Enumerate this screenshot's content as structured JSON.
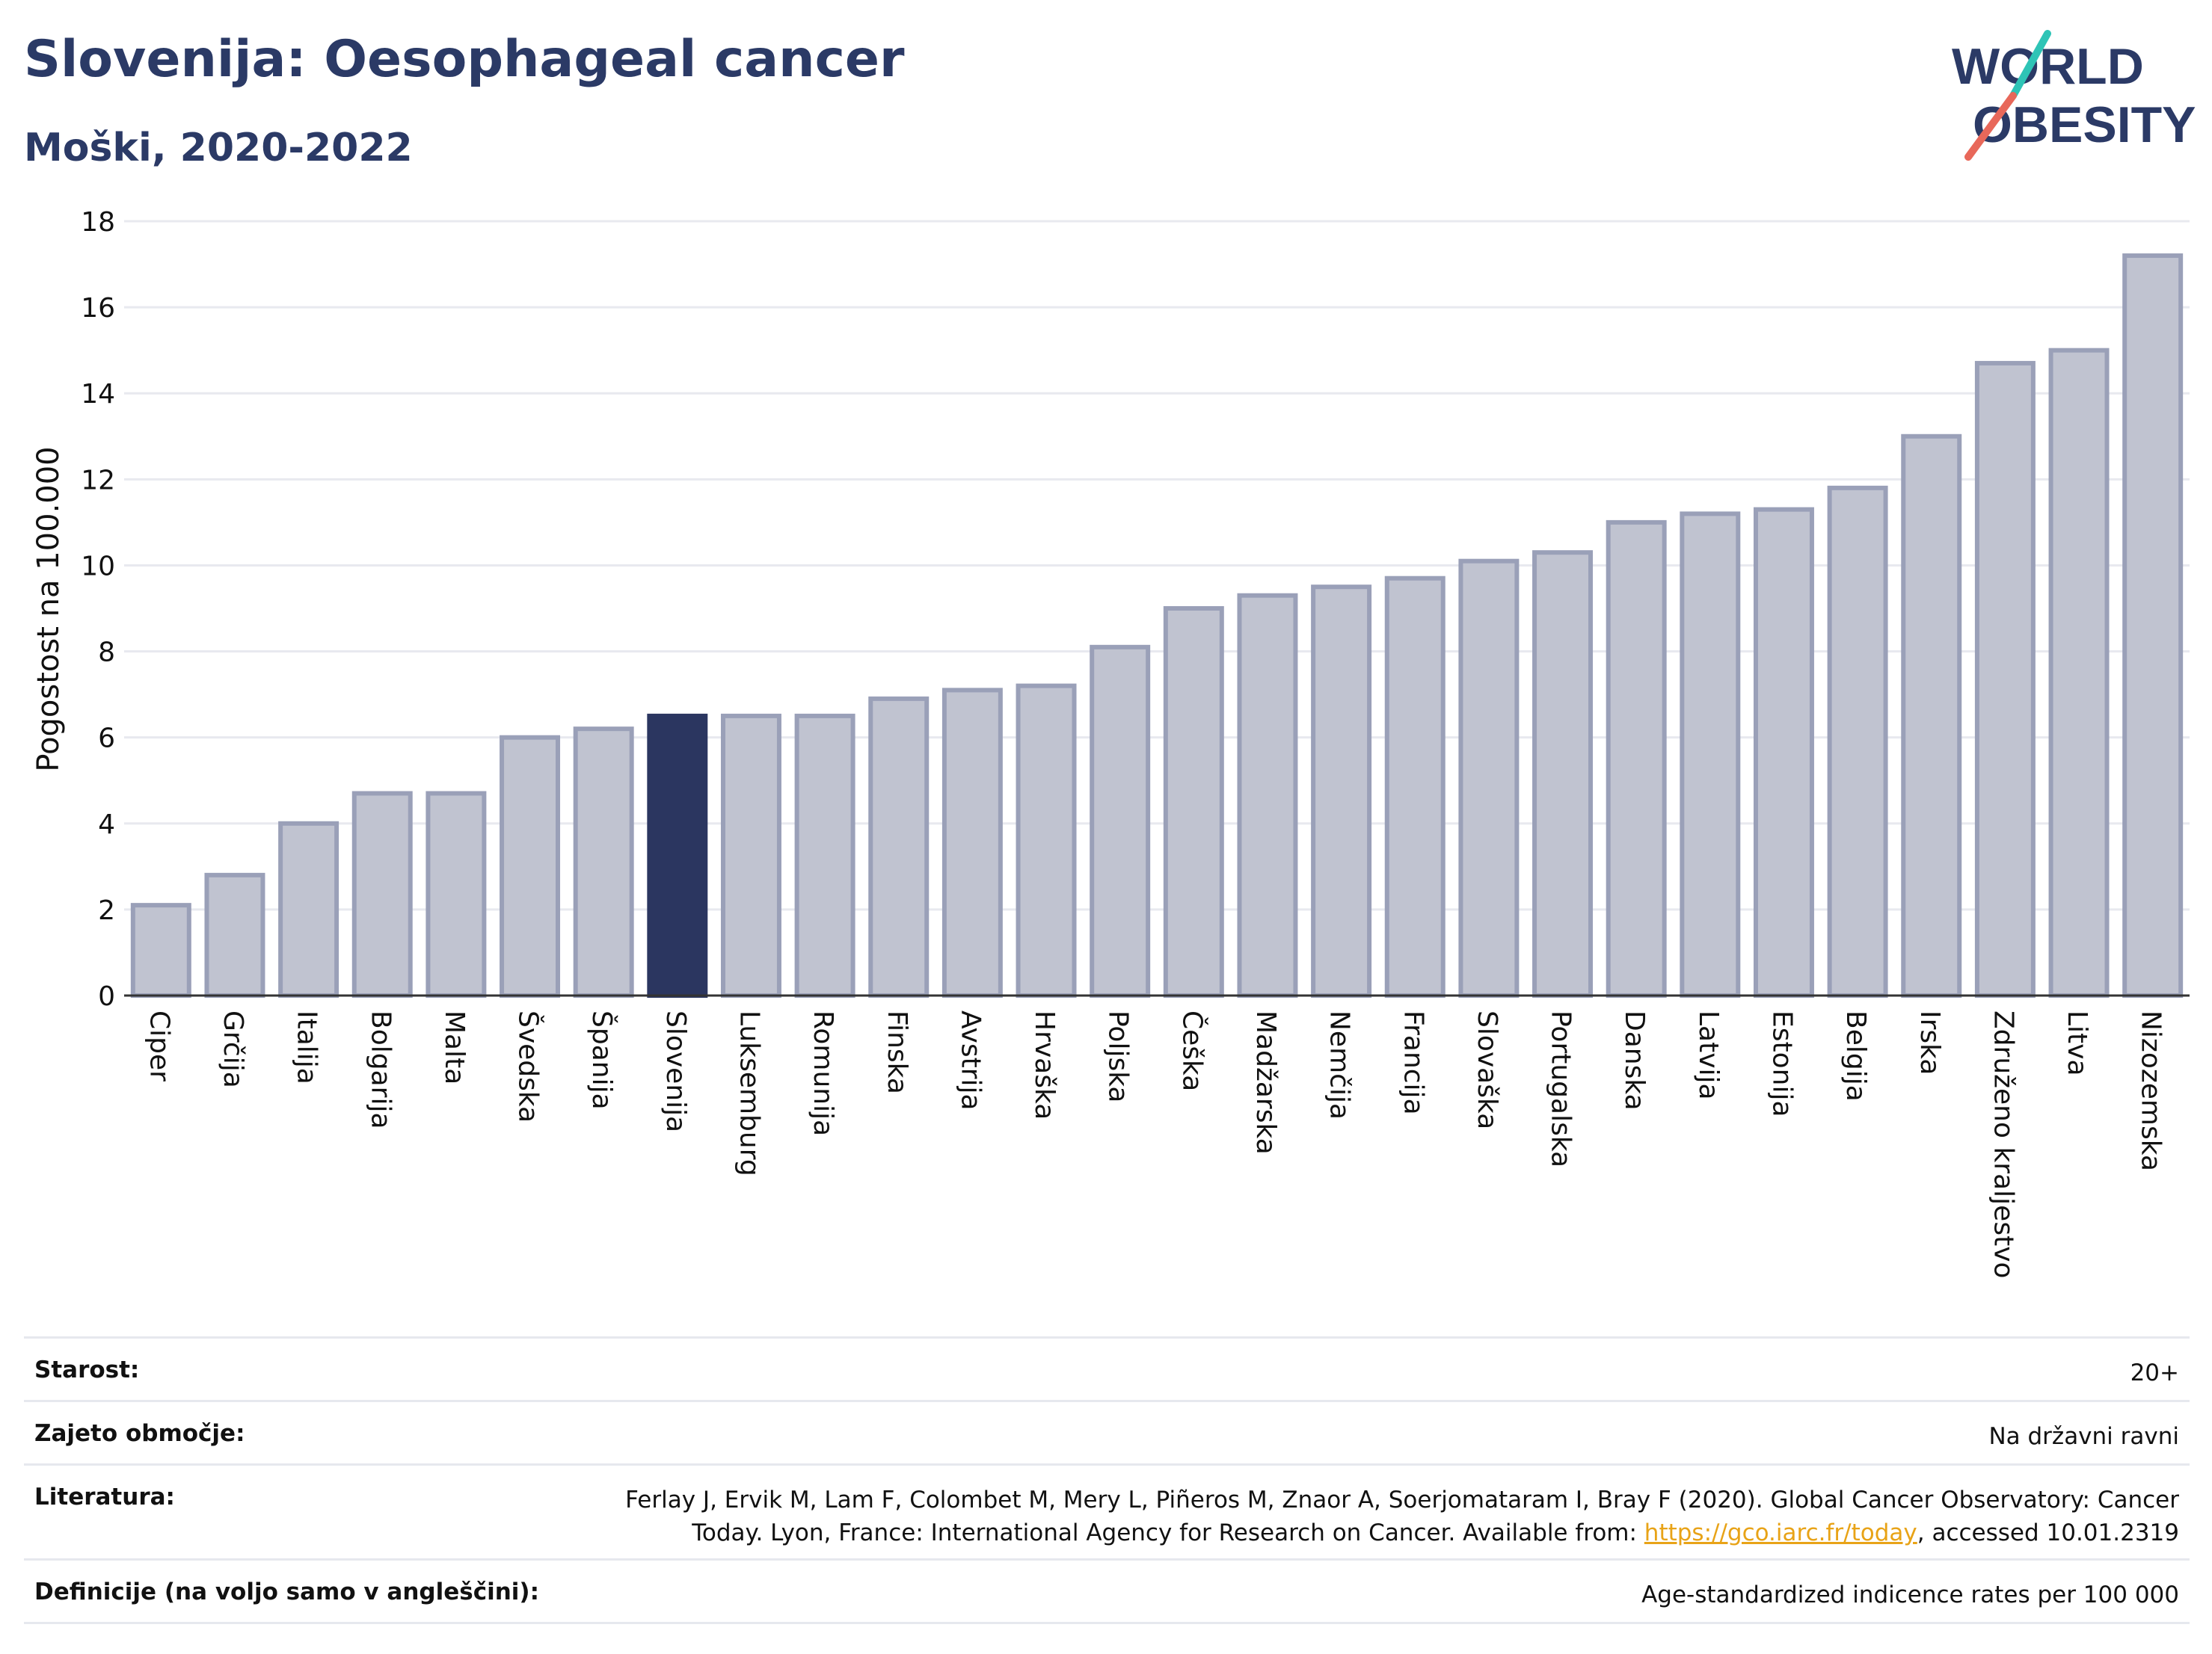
{
  "header": {
    "title": "Slovenija: Oesophageal cancer",
    "subtitle": "Moški, 2020-2022"
  },
  "logo": {
    "line1": "WORLD",
    "line2": "OBESITY",
    "color_text": "#2b3a66",
    "color_slash_top": "#2ec4b6",
    "color_slash_bottom": "#e8685a"
  },
  "colors": {
    "bar_fill": "#c0c3d0",
    "bar_stroke": "#9aa0b8",
    "highlight": "#2b3660",
    "grid": "#e8e9ef",
    "axis": "#333333"
  },
  "chart_data": {
    "type": "bar",
    "ylabel": "Pogostost na 100.000",
    "ylim": [
      0,
      18
    ],
    "yticks": [
      0,
      2,
      4,
      6,
      8,
      10,
      12,
      14,
      16,
      18
    ],
    "grid": true,
    "highlight": "Slovenija",
    "categories": [
      "Ciper",
      "Grčija",
      "Italija",
      "Bolgarija",
      "Malta",
      "Švedska",
      "Španija",
      "Slovenija",
      "Luksemburg",
      "Romunija",
      "Finska",
      "Avstrija",
      "Hrvaška",
      "Poljska",
      "Češka",
      "Madžarska",
      "Nemčija",
      "Francija",
      "Slovaška",
      "Portugalska",
      "Danska",
      "Latvija",
      "Estonija",
      "Belgija",
      "Irska",
      "Združeno kraljestvo",
      "Litva",
      "Nizozemska"
    ],
    "values": [
      2.1,
      2.8,
      4.0,
      4.7,
      4.7,
      6.0,
      6.2,
      6.5,
      6.5,
      6.5,
      6.9,
      7.1,
      7.2,
      8.1,
      9.0,
      9.3,
      9.5,
      9.7,
      10.1,
      10.3,
      11.0,
      11.2,
      11.3,
      11.8,
      13.0,
      14.7,
      15.0,
      17.2
    ]
  },
  "meta": {
    "rows": [
      {
        "label": "Starost:",
        "value": "20+"
      },
      {
        "label": "Zajeto območje:",
        "value": "Na državni ravni"
      },
      {
        "label": "Literatura:",
        "value_line1": "Ferlay J, Ervik M, Lam F, Colombet M, Mery L, Piñeros M, Znaor A, Soerjomataram I, Bray F (2020). Global Cancer Observatory: Cancer",
        "value_line2_pre": "Today. Lyon, France: International Agency for Research on Cancer. Available from: ",
        "link": "https://gco.iarc.fr/today",
        "value_line2_post": ", accessed 10.01.2319"
      },
      {
        "label": "Definicije (na voljo samo v angleščini):",
        "value": "Age-standardized indicence rates per 100 000"
      }
    ]
  }
}
